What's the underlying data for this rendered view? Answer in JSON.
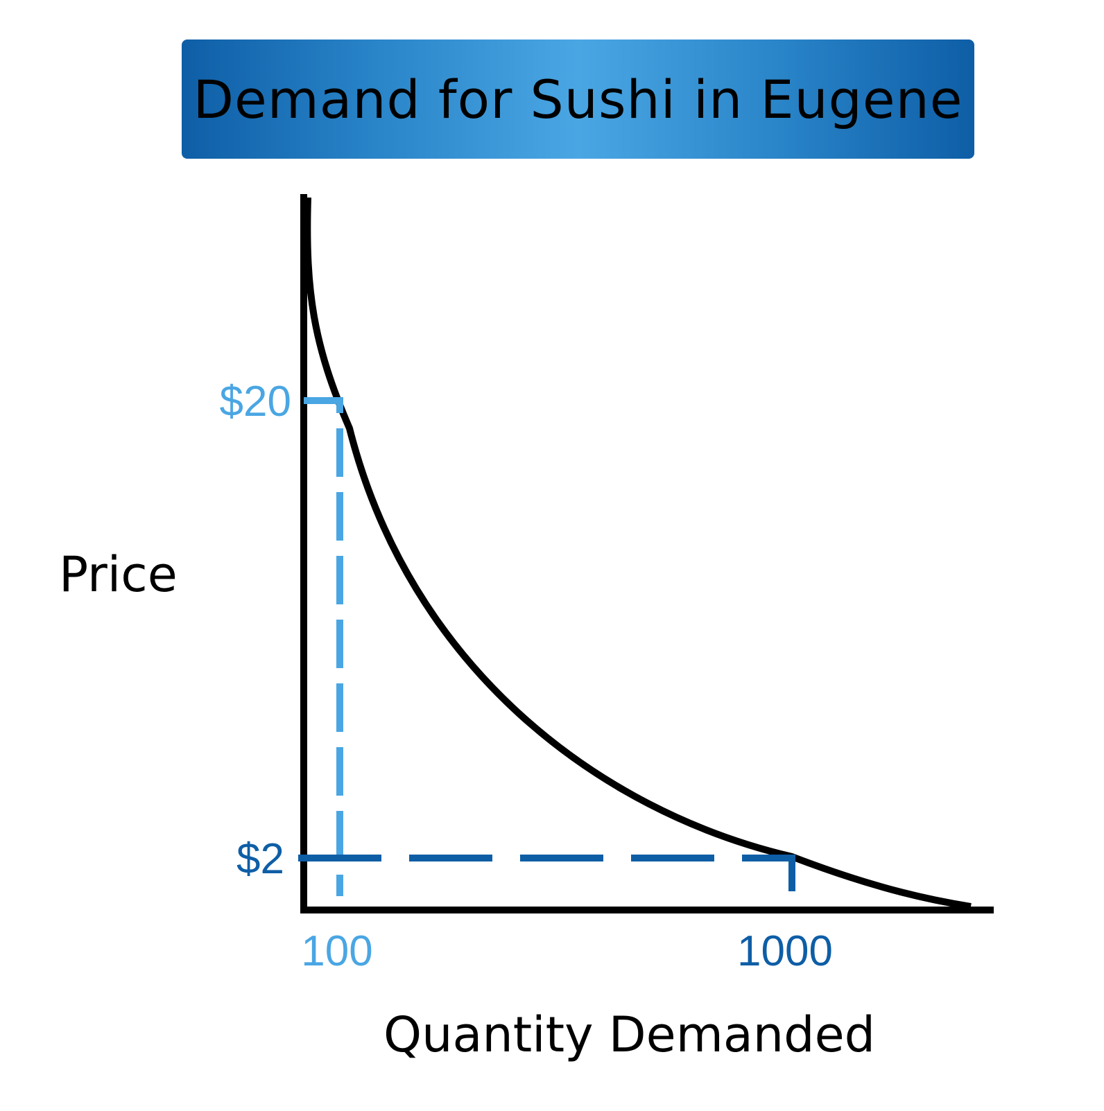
{
  "chart_data": {
    "type": "line",
    "title": "Demand for Sushi in Eugene",
    "xlabel": "Quantity Demanded",
    "ylabel": "Price",
    "series": [
      {
        "x": [
          100,
          1000
        ],
        "y": [
          20,
          2
        ]
      }
    ],
    "y_tick_labels": [
      "$20",
      "$2"
    ],
    "x_tick_labels": [
      "100",
      "1000"
    ],
    "points": [
      {
        "quantity": 100,
        "price": 20,
        "price_label": "$20",
        "quantity_label": "100",
        "color": "#4aa6e3"
      },
      {
        "quantity": 1000,
        "price": 2,
        "price_label": "$2",
        "quantity_label": "1000",
        "color": "#0e5ea6"
      }
    ],
    "grid": false
  },
  "colors": {
    "banner_dark": "#0e5ea6",
    "banner_light": "#4aa6e3",
    "point_light": "#4aa6e3",
    "point_dark": "#0e5ea6",
    "curve": "#000000"
  }
}
